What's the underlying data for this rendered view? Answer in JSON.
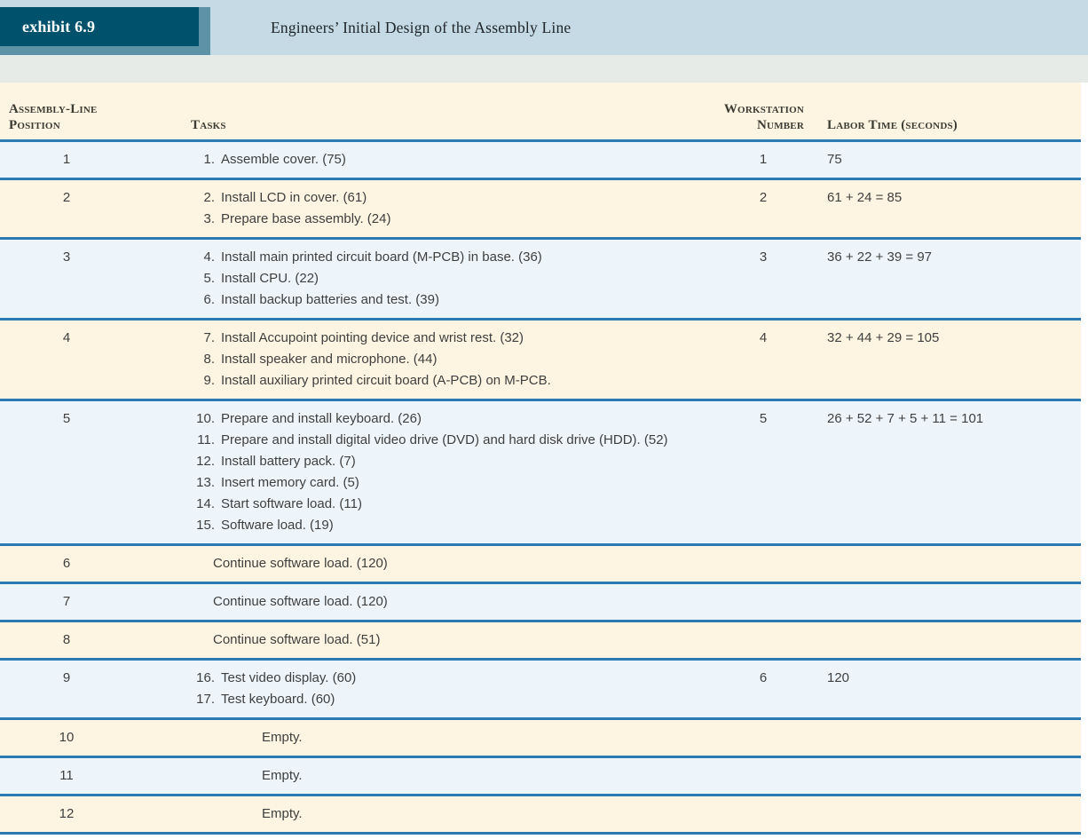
{
  "exhibit": {
    "label": "exhibit 6.9",
    "title": "Engineers’ Initial Design of the Assembly Line"
  },
  "table": {
    "headers": {
      "position_line1": "Assembly-Line",
      "position_line2": "Position",
      "tasks": "Tasks",
      "workstation_line1": "Workstation",
      "workstation_line2": "Number",
      "labor": "Labor Time (seconds)"
    },
    "rows": [
      {
        "position": "1",
        "type": "numbered",
        "tasks": [
          {
            "num": "1.",
            "text": "Assemble cover. (75)"
          }
        ],
        "workstation": "1",
        "labor": "75"
      },
      {
        "position": "2",
        "type": "numbered",
        "tasks": [
          {
            "num": "2.",
            "text": "Install LCD in cover. (61)"
          },
          {
            "num": "3.",
            "text": "Prepare base assembly. (24)"
          }
        ],
        "workstation": "2",
        "labor": "61 + 24 = 85"
      },
      {
        "position": "3",
        "type": "numbered",
        "tasks": [
          {
            "num": "4.",
            "text": "Install main printed circuit board (M-PCB) in base. (36)"
          },
          {
            "num": "5.",
            "text": "Install CPU. (22)"
          },
          {
            "num": "6.",
            "text": "Install backup batteries and test. (39)"
          }
        ],
        "workstation": "3",
        "labor": "36 + 22 + 39 = 97"
      },
      {
        "position": "4",
        "type": "numbered",
        "tasks": [
          {
            "num": "7.",
            "text": "Install Accupoint pointing device and wrist rest. (32)"
          },
          {
            "num": "8.",
            "text": "Install speaker and microphone. (44)"
          },
          {
            "num": "9.",
            "text": "Install auxiliary printed circuit board (A-PCB) on M-PCB."
          }
        ],
        "workstation": "4",
        "labor": "32 + 44 + 29 = 105"
      },
      {
        "position": "5",
        "type": "numbered",
        "tasks": [
          {
            "num": "10.",
            "text": "Prepare and install keyboard. (26)"
          },
          {
            "num": "11.",
            "text": "Prepare and install digital video drive (DVD) and hard disk drive (HDD). (52)"
          },
          {
            "num": "12.",
            "text": "Install battery pack. (7)"
          },
          {
            "num": "13.",
            "text": "Insert memory card. (5)"
          },
          {
            "num": "14.",
            "text": "Start software load. (11)"
          },
          {
            "num": "15.",
            "text": "Software load. (19)"
          }
        ],
        "workstation": "5",
        "labor": "26 + 52 + 7 + 5 + 11 = 101"
      },
      {
        "position": "6",
        "type": "continue",
        "text": "Continue software load. (120)",
        "workstation": "",
        "labor": ""
      },
      {
        "position": "7",
        "type": "continue",
        "text": "Continue software load. (120)",
        "workstation": "",
        "labor": ""
      },
      {
        "position": "8",
        "type": "continue",
        "text": "Continue software load. (51)",
        "workstation": "",
        "labor": ""
      },
      {
        "position": "9",
        "type": "numbered",
        "tasks": [
          {
            "num": "16.",
            "text": "Test video display. (60)"
          },
          {
            "num": "17.",
            "text": "Test keyboard. (60)"
          }
        ],
        "workstation": "6",
        "labor": "120"
      },
      {
        "position": "10",
        "type": "empty",
        "text": "Empty.",
        "workstation": "",
        "labor": ""
      },
      {
        "position": "11",
        "type": "empty",
        "text": "Empty.",
        "workstation": "",
        "labor": ""
      },
      {
        "position": "12",
        "type": "empty",
        "text": "Empty.",
        "workstation": "",
        "labor": ""
      }
    ]
  },
  "colors": {
    "exhibit_box": "#00516b",
    "exhibit_shadow": "#5e92a6",
    "title_band": "#c5dae4",
    "strip": "#e6ebe8",
    "row_cream": "#fdf5e2",
    "row_light_blue": "#eef5fa",
    "rule_blue": "#2b7ab3",
    "body_text": "#3f3f3f"
  }
}
